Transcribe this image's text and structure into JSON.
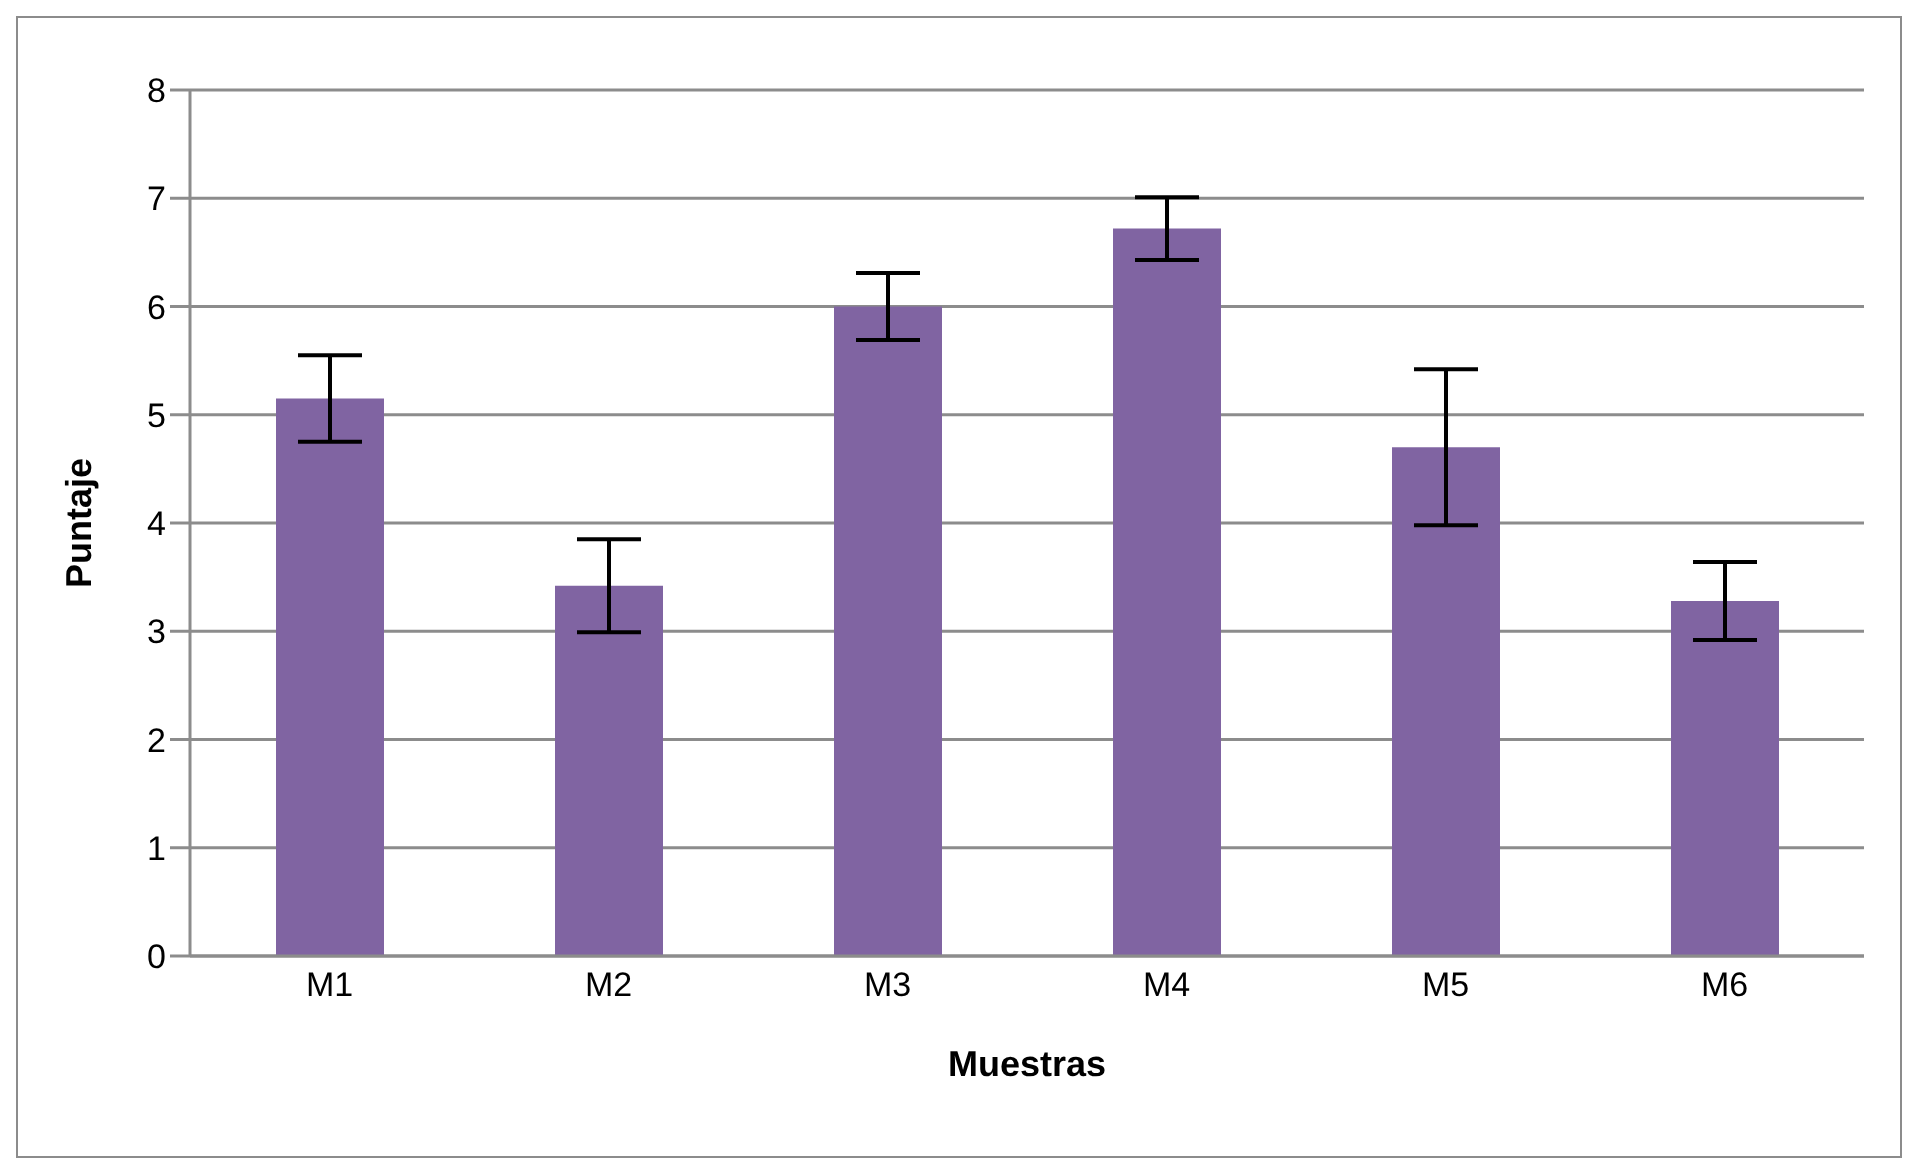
{
  "chart_data": {
    "type": "bar",
    "xlabel": "Muestras",
    "ylabel": "Puntaje",
    "categories": [
      "M1",
      "M2",
      "M3",
      "M4",
      "M5",
      "M6"
    ],
    "values": [
      5.15,
      3.42,
      6.0,
      6.72,
      4.7,
      3.28
    ],
    "errors": [
      0.4,
      0.43,
      0.31,
      0.29,
      0.72,
      0.36
    ],
    "color": "#8064a2",
    "ylim": [
      0,
      8
    ],
    "yticks": [
      0,
      1,
      2,
      3,
      4,
      5,
      6,
      7,
      8
    ],
    "grid": "y",
    "legend": false
  }
}
